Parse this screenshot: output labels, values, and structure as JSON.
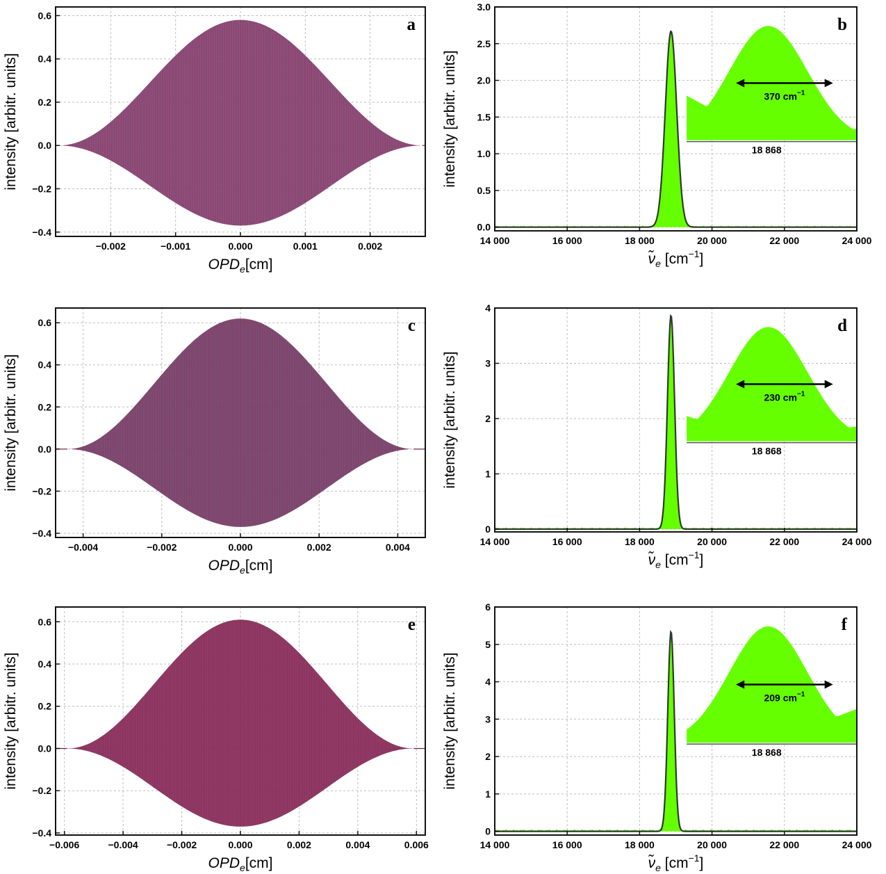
{
  "chart_data": [
    {
      "type": "line",
      "panel": "a",
      "xlabel": "OPD_e[cm]",
      "ylabel": "intensity [arbitr. units]",
      "xlim": [
        -0.00285,
        0.00285
      ],
      "ylim": [
        -0.42,
        0.64
      ],
      "xticks": [
        -0.002,
        -0.001,
        0.0,
        0.001,
        0.002
      ],
      "xtick_labels": [
        "−0.002",
        "−0.001",
        "0.000",
        "0.001",
        "0.002"
      ],
      "yticks": [
        -0.4,
        -0.2,
        0.0,
        0.2,
        0.4,
        0.6
      ],
      "ytick_labels": [
        "−0.4",
        "−0.2",
        "0.0",
        "0.2",
        "0.4",
        "0.6"
      ],
      "grid": true,
      "series": [
        {
          "style": "interferogram",
          "center": 0.0,
          "upper_peak": 0.58,
          "lower_peak": -0.37,
          "halfwidth": 0.0028,
          "colors": [
            "#8a2a5c",
            "#6a7fa6"
          ]
        }
      ]
    },
    {
      "type": "area",
      "panel": "b",
      "xlabel": "ν̃_e [cm⁻¹]",
      "ylabel": "intensity [arbitr. units]",
      "xlim": [
        14000,
        24000
      ],
      "ylim": [
        -0.05,
        3.0
      ],
      "xticks": [
        14000,
        16000,
        18000,
        20000,
        22000,
        24000
      ],
      "xtick_labels": [
        "14 000",
        "16 000",
        "18 000",
        "20 000",
        "22 000",
        "24 000"
      ],
      "yticks": [
        0.0,
        0.5,
        1.0,
        1.5,
        2.0,
        2.5,
        3.0
      ],
      "ytick_labels": [
        "0.0",
        "0.5",
        "1.0",
        "1.5",
        "2.0",
        "2.5",
        "3.0"
      ],
      "grid": true,
      "series": [
        {
          "style": "spectrum-fill",
          "color": "#66ff00",
          "peak_x": 18868,
          "peak_y": 2.67,
          "fwhm": 370,
          "baseline": 0.02
        },
        {
          "style": "fit-line",
          "color": "#2b3a2b",
          "peak_x": 18868,
          "peak_y": 2.67,
          "fwhm": 370
        }
      ],
      "inset": {
        "fwhm_label": "370 cm",
        "fwhm_exp": "−1",
        "center_label": "18 868",
        "left_level": 0.39,
        "right_level": 0.1
      }
    },
    {
      "type": "line",
      "panel": "c",
      "xlabel": "OPD_e[cm]",
      "ylabel": "intensity [arbitr. units]",
      "xlim": [
        -0.0047,
        0.0047
      ],
      "ylim": [
        -0.42,
        0.67
      ],
      "xticks": [
        -0.004,
        -0.002,
        0.0,
        0.002,
        0.004
      ],
      "xtick_labels": [
        "−0.004",
        "−0.002",
        "0.000",
        "0.002",
        "0.004"
      ],
      "yticks": [
        -0.4,
        -0.2,
        0.0,
        0.2,
        0.4,
        0.6
      ],
      "ytick_labels": [
        "−0.4",
        "−0.2",
        "0.0",
        "0.2",
        "0.4",
        "0.6"
      ],
      "grid": true,
      "series": [
        {
          "style": "interferogram",
          "center": 0.0,
          "upper_peak": 0.62,
          "lower_peak": -0.37,
          "halfwidth": 0.0044,
          "colors": [
            "#7a2752",
            "#5f7aa0"
          ]
        }
      ]
    },
    {
      "type": "area",
      "panel": "d",
      "xlabel": "ν̃_e [cm⁻¹]",
      "ylabel": "intensity [arbitr. units]",
      "xlim": [
        14000,
        24000
      ],
      "ylim": [
        -0.05,
        4.0
      ],
      "xticks": [
        14000,
        16000,
        18000,
        20000,
        22000,
        24000
      ],
      "xtick_labels": [
        "14 000",
        "16 000",
        "18 000",
        "20 000",
        "22 000",
        "24 000"
      ],
      "yticks": [
        0,
        1,
        2,
        3,
        4
      ],
      "ytick_labels": [
        "0",
        "1",
        "2",
        "3",
        "4"
      ],
      "grid": true,
      "series": [
        {
          "style": "spectrum-fill",
          "color": "#66ff00",
          "peak_x": 18868,
          "peak_y": 3.87,
          "fwhm": 230,
          "baseline": 0.03
        },
        {
          "style": "fit-line",
          "color": "#2b3a2b",
          "peak_x": 18868,
          "peak_y": 3.87,
          "fwhm": 230
        }
      ],
      "inset": {
        "fwhm_label": "230 cm",
        "fwhm_exp": "−1",
        "center_label": "18 868",
        "left_level": 0.22,
        "right_level": 0.13
      }
    },
    {
      "type": "line",
      "panel": "e",
      "xlabel": "OPD_e[cm]",
      "ylabel": "intensity [arbitr. units]",
      "xlim": [
        -0.0063,
        0.0063
      ],
      "ylim": [
        -0.41,
        0.67
      ],
      "xticks": [
        -0.006,
        -0.004,
        -0.002,
        0.0,
        0.002,
        0.004,
        0.006
      ],
      "xtick_labels": [
        "−0.006",
        "−0.004",
        "−0.002",
        "0.000",
        "0.002",
        "0.004",
        "0.006"
      ],
      "yticks": [
        -0.4,
        -0.2,
        0.0,
        0.2,
        0.4,
        0.6
      ],
      "ytick_labels": [
        "−0.4",
        "−0.2",
        "0.0",
        "0.2",
        "0.4",
        "0.6"
      ],
      "grid": true,
      "series": [
        {
          "style": "interferogram",
          "center": 0.0,
          "upper_peak": 0.61,
          "lower_peak": -0.37,
          "halfwidth": 0.0059,
          "colors": [
            "#74204b",
            "#c0407a"
          ]
        }
      ]
    },
    {
      "type": "area",
      "panel": "f",
      "xlabel": "ν̃_e [cm⁻¹]",
      "ylabel": "intensity [arbitr. units]",
      "xlim": [
        14000,
        24000
      ],
      "ylim": [
        -0.1,
        6.0
      ],
      "xticks": [
        14000,
        16000,
        18000,
        20000,
        22000,
        24000
      ],
      "xtick_labels": [
        "14 000",
        "16 000",
        "18 000",
        "20 000",
        "22 000",
        "24 000"
      ],
      "yticks": [
        0,
        1,
        2,
        3,
        4,
        5,
        6
      ],
      "ytick_labels": [
        "0",
        "1",
        "2",
        "3",
        "4",
        "5",
        "6"
      ],
      "grid": true,
      "series": [
        {
          "style": "spectrum-fill",
          "color": "#66ff00",
          "peak_x": 18868,
          "peak_y": 5.35,
          "fwhm": 209,
          "baseline": 0.05
        },
        {
          "style": "fit-line",
          "color": "#2b3a2b",
          "peak_x": 18868,
          "peak_y": 5.35,
          "fwhm": 209
        }
      ],
      "inset": {
        "fwhm_label": "209 cm",
        "fwhm_exp": "−1",
        "center_label": "18 868",
        "left_level": 0.1,
        "right_level": 0.29
      }
    }
  ]
}
